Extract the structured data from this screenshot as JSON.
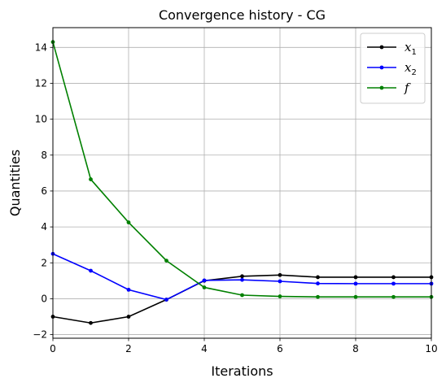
{
  "chart_data": {
    "type": "line",
    "title": "Convergence history - CG",
    "xlabel": "Iterations",
    "ylabel": "Quantities",
    "xlim": [
      0,
      10
    ],
    "ylim": [
      -2.2,
      15.1
    ],
    "xticks": [
      0,
      2,
      4,
      6,
      8,
      10
    ],
    "yticks": [
      -2,
      0,
      2,
      4,
      6,
      8,
      10,
      12,
      14
    ],
    "ytick_labels": [
      "−2",
      "0",
      "2",
      "4",
      "6",
      "8",
      "10",
      "12",
      "14"
    ],
    "grid": true,
    "legend_position": "top-right",
    "x": [
      0,
      1,
      2,
      3,
      4,
      5,
      6,
      7,
      8,
      9,
      10
    ],
    "series": [
      {
        "name": "x",
        "subscript": "1",
        "color": "#000000",
        "values": [
          -1.0,
          -1.35,
          -1.0,
          -0.05,
          1.0,
          1.25,
          1.32,
          1.2,
          1.2,
          1.2,
          1.2
        ]
      },
      {
        "name": "x",
        "subscript": "2",
        "color": "#0000ff",
        "values": [
          2.5,
          1.56,
          0.5,
          -0.05,
          1.02,
          1.05,
          0.97,
          0.85,
          0.84,
          0.84,
          0.84
        ]
      },
      {
        "name": "f",
        "subscript": "",
        "color": "#008000",
        "values": [
          14.3,
          6.65,
          4.25,
          2.12,
          0.63,
          0.2,
          0.13,
          0.1,
          0.1,
          0.1,
          0.1
        ]
      }
    ]
  }
}
